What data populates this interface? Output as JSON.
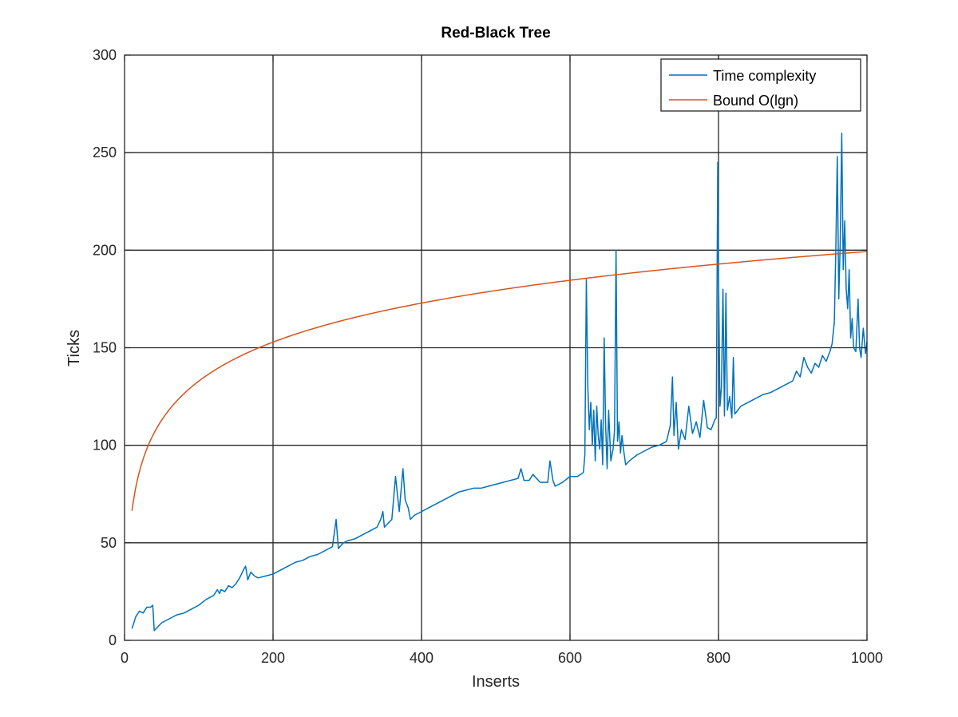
{
  "chart_data": {
    "type": "line",
    "title": "Red-Black Tree",
    "xlabel": "Inserts",
    "ylabel": "Ticks",
    "xlim": [
      0,
      1000
    ],
    "ylim": [
      0,
      300
    ],
    "xticks": [
      0,
      200,
      400,
      600,
      800,
      1000
    ],
    "yticks": [
      0,
      50,
      100,
      150,
      200,
      250,
      300
    ],
    "grid": true,
    "legend_position": "top-right",
    "series": [
      {
        "name": "Time complexity",
        "color": "#0072bd",
        "x": [
          10,
          15,
          20,
          25,
          30,
          35,
          38,
          40,
          45,
          50,
          60,
          70,
          80,
          90,
          100,
          110,
          120,
          125,
          128,
          130,
          135,
          140,
          145,
          150,
          155,
          160,
          163,
          166,
          170,
          175,
          180,
          190,
          200,
          210,
          220,
          230,
          240,
          250,
          260,
          270,
          280,
          285,
          288,
          290,
          295,
          300,
          310,
          320,
          330,
          340,
          345,
          348,
          350,
          355,
          360,
          365,
          370,
          375,
          378,
          382,
          385,
          390,
          400,
          410,
          420,
          430,
          440,
          450,
          460,
          470,
          480,
          490,
          500,
          510,
          520,
          530,
          534,
          538,
          545,
          550,
          560,
          570,
          573,
          577,
          580,
          590,
          600,
          610,
          618,
          620,
          622,
          624,
          626,
          628,
          630,
          632,
          634,
          636,
          638,
          640,
          642,
          644,
          646,
          648,
          650,
          652,
          655,
          658,
          660,
          662,
          664,
          666,
          668,
          670,
          672,
          675,
          680,
          690,
          700,
          710,
          720,
          730,
          735,
          738,
          740,
          743,
          746,
          750,
          755,
          760,
          765,
          770,
          775,
          780,
          785,
          790,
          795,
          797,
          799,
          800,
          802,
          804,
          806,
          808,
          810,
          812,
          815,
          818,
          820,
          822,
          824,
          826,
          830,
          840,
          850,
          860,
          870,
          880,
          890,
          900,
          905,
          910,
          915,
          920,
          925,
          930,
          935,
          940,
          945,
          950,
          953,
          956,
          958,
          960,
          962,
          964,
          966,
          968,
          970,
          972,
          974,
          976,
          978,
          980,
          982,
          985,
          988,
          990,
          992,
          995,
          998,
          1000
        ],
        "y": [
          6,
          12,
          15,
          14,
          17,
          17,
          18,
          5,
          7,
          9,
          11,
          13,
          14,
          16,
          18,
          21,
          23,
          26,
          24,
          26,
          25,
          28,
          27,
          29,
          32,
          36,
          38,
          31,
          35,
          33,
          32,
          33,
          34,
          36,
          38,
          40,
          41,
          43,
          44,
          46,
          48,
          62,
          47,
          48,
          50,
          51,
          52,
          54,
          56,
          58,
          62,
          66,
          58,
          60,
          62,
          84,
          66,
          88,
          72,
          68,
          62,
          64,
          66,
          68,
          70,
          72,
          74,
          76,
          77,
          78,
          78,
          79,
          80,
          81,
          82,
          83,
          88,
          82,
          82,
          85,
          81,
          81,
          92,
          82,
          79,
          81,
          84,
          84,
          86,
          95,
          185,
          130,
          108,
          122,
          100,
          118,
          92,
          120,
          105,
          98,
          113,
          90,
          155,
          110,
          88,
          118,
          92,
          98,
          108,
          200,
          102,
          112,
          96,
          105,
          98,
          90,
          92,
          95,
          97,
          99,
          100,
          102,
          110,
          135,
          105,
          122,
          98,
          108,
          103,
          120,
          106,
          112,
          104,
          123,
          109,
          108,
          113,
          114,
          245,
          190,
          120,
          130,
          180,
          115,
          178,
          118,
          125,
          114,
          145,
          116,
          117,
          118,
          120,
          122,
          124,
          126,
          127,
          129,
          131,
          133,
          138,
          135,
          145,
          140,
          137,
          142,
          140,
          146,
          143,
          148,
          152,
          163,
          200,
          248,
          175,
          205,
          260,
          190,
          215,
          180,
          170,
          190,
          155,
          165,
          150,
          148,
          175,
          150,
          145,
          160,
          147,
          153
        ]
      },
      {
        "name": "Bound O(lgn)",
        "color": "#d95319",
        "formula": "20*log2(n)",
        "x": [
          10,
          15,
          20,
          30,
          40,
          50,
          70,
          100,
          150,
          200,
          300,
          400,
          500,
          600,
          700,
          800,
          900,
          1000
        ],
        "y": [
          66.4,
          78.1,
          86.4,
          98.1,
          106.4,
          112.9,
          122.6,
          132.9,
          144.6,
          152.9,
          164.6,
          172.9,
          179.3,
          184.6,
          189.0,
          192.9,
          196.3,
          199.3
        ]
      }
    ]
  }
}
